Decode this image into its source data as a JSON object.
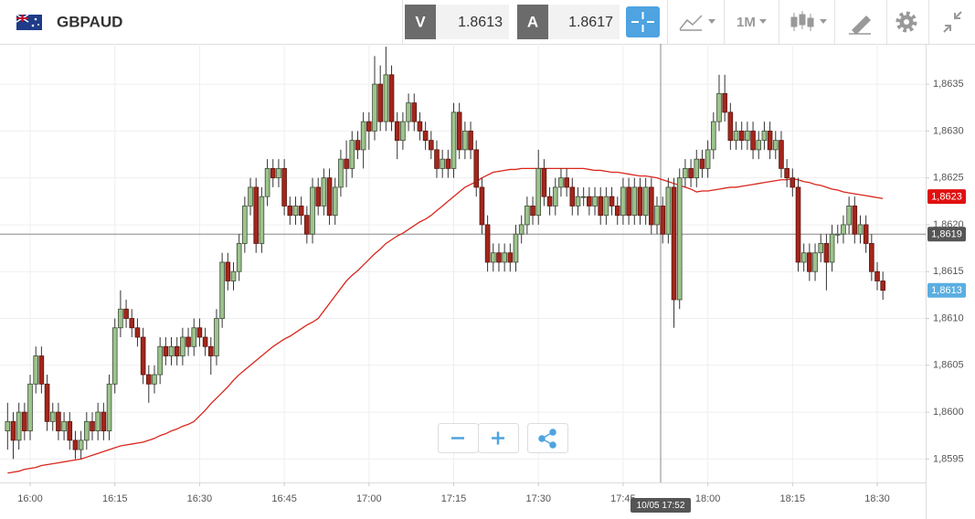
{
  "toolbar": {
    "symbol": "GBPAUD",
    "bid_label": "V",
    "bid": 1.8613,
    "ask_label": "A",
    "ask": 1.8617,
    "timeframe": "1M"
  },
  "chart_data": {
    "type": "candlestick",
    "ylim": [
      1.85925,
      1.86393
    ],
    "yticks": [
      {
        "value": 1.8595,
        "label": "1,8595"
      },
      {
        "value": 1.86,
        "label": "1,8600"
      },
      {
        "value": 1.8605,
        "label": "1,8605"
      },
      {
        "value": 1.861,
        "label": "1,8610"
      },
      {
        "value": 1.8615,
        "label": "1,8615"
      },
      {
        "value": 1.862,
        "label": "1,8620"
      },
      {
        "value": 1.8625,
        "label": "1,8625"
      },
      {
        "value": 1.863,
        "label": "1,8630"
      },
      {
        "value": 1.8635,
        "label": "1,8635"
      }
    ],
    "grid": true,
    "up_color": "#9cc48c",
    "down_color": "#a3261b",
    "categories": [
      null,
      null,
      null,
      null,
      "16:00",
      null,
      null,
      null,
      null,
      null,
      null,
      null,
      null,
      null,
      null,
      null,
      null,
      null,
      null,
      "16:15",
      null,
      null,
      null,
      null,
      null,
      null,
      null,
      null,
      null,
      null,
      null,
      null,
      null,
      null,
      "16:30",
      null,
      null,
      null,
      null,
      null,
      null,
      null,
      null,
      null,
      null,
      null,
      null,
      null,
      null,
      "16:45",
      null,
      null,
      null,
      null,
      null,
      null,
      null,
      null,
      null,
      null,
      null,
      null,
      null,
      null,
      "17:00",
      null,
      null,
      null,
      null,
      null,
      null,
      null,
      null,
      null,
      null,
      null,
      null,
      null,
      null,
      "17:15",
      null,
      null,
      null,
      null,
      null,
      null,
      null,
      null,
      null,
      null,
      null,
      null,
      null,
      null,
      "17:30",
      null,
      null,
      null,
      null,
      null,
      null,
      null,
      null,
      null,
      null,
      null,
      null,
      null,
      null,
      "17:45",
      null,
      null,
      null,
      null,
      null,
      null,
      null,
      null,
      null,
      null,
      null,
      null,
      null,
      null,
      "18:00",
      null,
      null,
      null,
      null,
      null,
      null,
      null,
      null,
      null,
      null,
      null,
      null,
      null,
      null,
      "18:15",
      null,
      null,
      null,
      null,
      null,
      null,
      null,
      null,
      null,
      null,
      null,
      null,
      null,
      null,
      "18:30",
      null
    ],
    "candles": [
      [
        1.8598,
        1.8601,
        1.8596,
        1.8599
      ],
      [
        1.8599,
        1.86,
        1.8595,
        1.8597
      ],
      [
        1.8597,
        1.8601,
        1.8596,
        1.86
      ],
      [
        1.86,
        1.8601,
        1.8597,
        1.8598
      ],
      [
        1.8598,
        1.8604,
        1.8597,
        1.8603
      ],
      [
        1.8603,
        1.8607,
        1.8602,
        1.8606
      ],
      [
        1.8606,
        1.8607,
        1.8602,
        1.8603
      ],
      [
        1.8603,
        1.8604,
        1.8598,
        1.8599
      ],
      [
        1.8599,
        1.8601,
        1.8598,
        1.86
      ],
      [
        1.86,
        1.8601,
        1.8597,
        1.8598
      ],
      [
        1.8598,
        1.86,
        1.8597,
        1.8599
      ],
      [
        1.8599,
        1.86,
        1.8596,
        1.8597
      ],
      [
        1.8597,
        1.8598,
        1.8595,
        1.8596
      ],
      [
        1.8596,
        1.8598,
        1.8595,
        1.8597
      ],
      [
        1.8597,
        1.86,
        1.8596,
        1.8599
      ],
      [
        1.8599,
        1.86,
        1.8597,
        1.8598
      ],
      [
        1.8598,
        1.8601,
        1.8597,
        1.86
      ],
      [
        1.86,
        1.8601,
        1.8597,
        1.8598
      ],
      [
        1.8598,
        1.8604,
        1.8597,
        1.8603
      ],
      [
        1.8603,
        1.861,
        1.8602,
        1.8609
      ],
      [
        1.8609,
        1.8613,
        1.8608,
        1.8611
      ],
      [
        1.8611,
        1.8612,
        1.8609,
        1.861
      ],
      [
        1.861,
        1.8611,
        1.8608,
        1.8609
      ],
      [
        1.8609,
        1.861,
        1.8607,
        1.8608
      ],
      [
        1.8608,
        1.8609,
        1.8603,
        1.8604
      ],
      [
        1.8604,
        1.8605,
        1.8601,
        1.8603
      ],
      [
        1.8603,
        1.8605,
        1.8602,
        1.8604
      ],
      [
        1.8604,
        1.8608,
        1.8603,
        1.8607
      ],
      [
        1.8607,
        1.8608,
        1.8605,
        1.8606
      ],
      [
        1.8606,
        1.8608,
        1.8605,
        1.8607
      ],
      [
        1.8607,
        1.8608,
        1.8605,
        1.8606
      ],
      [
        1.8606,
        1.8609,
        1.8605,
        1.8608
      ],
      [
        1.8608,
        1.8609,
        1.8606,
        1.8607
      ],
      [
        1.8607,
        1.861,
        1.8606,
        1.8609
      ],
      [
        1.8609,
        1.861,
        1.8607,
        1.8608
      ],
      [
        1.8608,
        1.8609,
        1.8606,
        1.8607
      ],
      [
        1.8607,
        1.8608,
        1.8604,
        1.8606
      ],
      [
        1.8606,
        1.8611,
        1.8605,
        1.861
      ],
      [
        1.861,
        1.8617,
        1.8609,
        1.8616
      ],
      [
        1.8616,
        1.8617,
        1.8613,
        1.8614
      ],
      [
        1.8614,
        1.8616,
        1.8613,
        1.8615
      ],
      [
        1.8615,
        1.8619,
        1.8614,
        1.8618
      ],
      [
        1.8618,
        1.8623,
        1.8617,
        1.8622
      ],
      [
        1.8622,
        1.8625,
        1.8621,
        1.8624
      ],
      [
        1.8624,
        1.8625,
        1.8617,
        1.8618
      ],
      [
        1.8618,
        1.8624,
        1.8617,
        1.8623
      ],
      [
        1.8623,
        1.8627,
        1.8622,
        1.8626
      ],
      [
        1.8626,
        1.8627,
        1.8624,
        1.8625
      ],
      [
        1.8625,
        1.8627,
        1.8624,
        1.8626
      ],
      [
        1.8626,
        1.8627,
        1.8621,
        1.8622
      ],
      [
        1.8622,
        1.8623,
        1.862,
        1.8621
      ],
      [
        1.8621,
        1.8623,
        1.862,
        1.8622
      ],
      [
        1.8622,
        1.8623,
        1.862,
        1.8621
      ],
      [
        1.8621,
        1.8622,
        1.8618,
        1.8619
      ],
      [
        1.8619,
        1.8625,
        1.8618,
        1.8624
      ],
      [
        1.8624,
        1.8625,
        1.8621,
        1.8622
      ],
      [
        1.8622,
        1.8626,
        1.8621,
        1.8625
      ],
      [
        1.8625,
        1.8626,
        1.862,
        1.8621
      ],
      [
        1.8621,
        1.8625,
        1.862,
        1.8624
      ],
      [
        1.8624,
        1.8628,
        1.8623,
        1.8627
      ],
      [
        1.8627,
        1.8629,
        1.8624,
        1.8626
      ],
      [
        1.8626,
        1.863,
        1.8625,
        1.8629
      ],
      [
        1.8629,
        1.863,
        1.8627,
        1.8628
      ],
      [
        1.8628,
        1.8632,
        1.8626,
        1.8631
      ],
      [
        1.8631,
        1.8632,
        1.8628,
        1.863
      ],
      [
        1.863,
        1.8638,
        1.8629,
        1.8635
      ],
      [
        1.8635,
        1.8637,
        1.863,
        1.8631
      ],
      [
        1.8631,
        1.8639,
        1.863,
        1.8636
      ],
      [
        1.8636,
        1.8637,
        1.863,
        1.8631
      ],
      [
        1.8631,
        1.8632,
        1.8627,
        1.8629
      ],
      [
        1.8629,
        1.8632,
        1.8628,
        1.8631
      ],
      [
        1.8631,
        1.8634,
        1.863,
        1.8633
      ],
      [
        1.8633,
        1.8634,
        1.863,
        1.8631
      ],
      [
        1.8631,
        1.8632,
        1.8629,
        1.863
      ],
      [
        1.863,
        1.8631,
        1.8628,
        1.8629
      ],
      [
        1.8629,
        1.863,
        1.8627,
        1.8628
      ],
      [
        1.8628,
        1.8629,
        1.8625,
        1.8626
      ],
      [
        1.8626,
        1.8628,
        1.8625,
        1.8627
      ],
      [
        1.8627,
        1.8628,
        1.8625,
        1.8626
      ],
      [
        1.8626,
        1.8633,
        1.8625,
        1.8632
      ],
      [
        1.8632,
        1.8633,
        1.8627,
        1.8628
      ],
      [
        1.8628,
        1.8631,
        1.8627,
        1.863
      ],
      [
        1.863,
        1.8631,
        1.8627,
        1.8628
      ],
      [
        1.8628,
        1.8629,
        1.8623,
        1.8624
      ],
      [
        1.8624,
        1.8625,
        1.8619,
        1.862
      ],
      [
        1.862,
        1.8621,
        1.8615,
        1.8616
      ],
      [
        1.8616,
        1.8618,
        1.8615,
        1.8617
      ],
      [
        1.8617,
        1.8618,
        1.8615,
        1.8616
      ],
      [
        1.8616,
        1.8618,
        1.8615,
        1.8617
      ],
      [
        1.8617,
        1.8618,
        1.8615,
        1.8616
      ],
      [
        1.8616,
        1.862,
        1.8615,
        1.8619
      ],
      [
        1.8619,
        1.8621,
        1.8618,
        1.862
      ],
      [
        1.862,
        1.8623,
        1.8619,
        1.8622
      ],
      [
        1.8622,
        1.8623,
        1.862,
        1.8621
      ],
      [
        1.8621,
        1.8628,
        1.862,
        1.8626
      ],
      [
        1.8626,
        1.8627,
        1.8622,
        1.8623
      ],
      [
        1.8623,
        1.8624,
        1.8621,
        1.8622
      ],
      [
        1.8622,
        1.8625,
        1.8621,
        1.8624
      ],
      [
        1.8624,
        1.8626,
        1.8623,
        1.8625
      ],
      [
        1.8625,
        1.8626,
        1.8623,
        1.8624
      ],
      [
        1.8624,
        1.8625,
        1.8621,
        1.8622
      ],
      [
        1.8622,
        1.8624,
        1.8621,
        1.8623
      ],
      [
        1.8623,
        1.8624,
        1.8622,
        1.8623
      ],
      [
        1.8623,
        1.8624,
        1.8621,
        1.8622
      ],
      [
        1.8622,
        1.8624,
        1.8621,
        1.8623
      ],
      [
        1.8623,
        1.8624,
        1.862,
        1.8621
      ],
      [
        1.8621,
        1.8624,
        1.862,
        1.8623
      ],
      [
        1.8623,
        1.8624,
        1.8621,
        1.8622
      ],
      [
        1.8622,
        1.8623,
        1.862,
        1.8621
      ],
      [
        1.8621,
        1.8625,
        1.862,
        1.8624
      ],
      [
        1.8624,
        1.8625,
        1.862,
        1.8621
      ],
      [
        1.8621,
        1.8625,
        1.862,
        1.8624
      ],
      [
        1.8624,
        1.8625,
        1.862,
        1.8621
      ],
      [
        1.8621,
        1.8625,
        1.862,
        1.8624
      ],
      [
        1.8624,
        1.8625,
        1.8619,
        1.862
      ],
      [
        1.862,
        1.8623,
        1.8619,
        1.8622
      ],
      [
        1.8622,
        1.8623,
        1.8618,
        1.8619
      ],
      [
        1.8619,
        1.8625,
        1.8618,
        1.8624
      ],
      [
        1.8624,
        1.8625,
        1.8609,
        1.8612
      ],
      [
        1.8612,
        1.8626,
        1.8611,
        1.8625
      ],
      [
        1.8625,
        1.8627,
        1.8624,
        1.8626
      ],
      [
        1.8626,
        1.8627,
        1.8624,
        1.8625
      ],
      [
        1.8625,
        1.8628,
        1.8624,
        1.8627
      ],
      [
        1.8627,
        1.8628,
        1.8625,
        1.8626
      ],
      [
        1.8626,
        1.8629,
        1.8625,
        1.8628
      ],
      [
        1.8628,
        1.8632,
        1.8627,
        1.8631
      ],
      [
        1.8631,
        1.8636,
        1.863,
        1.8634
      ],
      [
        1.8634,
        1.8636,
        1.8631,
        1.8632
      ],
      [
        1.8632,
        1.8633,
        1.8628,
        1.8629
      ],
      [
        1.8629,
        1.8631,
        1.8628,
        1.863
      ],
      [
        1.863,
        1.8631,
        1.8628,
        1.8629
      ],
      [
        1.8629,
        1.8631,
        1.8628,
        1.863
      ],
      [
        1.863,
        1.8631,
        1.8627,
        1.8628
      ],
      [
        1.8628,
        1.863,
        1.8627,
        1.8629
      ],
      [
        1.8629,
        1.8631,
        1.8628,
        1.863
      ],
      [
        1.863,
        1.8631,
        1.8627,
        1.8628
      ],
      [
        1.8628,
        1.863,
        1.8627,
        1.8629
      ],
      [
        1.8629,
        1.863,
        1.8625,
        1.8626
      ],
      [
        1.8626,
        1.8627,
        1.8624,
        1.8625
      ],
      [
        1.8625,
        1.8626,
        1.8623,
        1.8624
      ],
      [
        1.8624,
        1.8625,
        1.8615,
        1.8616
      ],
      [
        1.8616,
        1.8618,
        1.8615,
        1.8617
      ],
      [
        1.8617,
        1.8618,
        1.8614,
        1.8615
      ],
      [
        1.8615,
        1.8618,
        1.8614,
        1.8617
      ],
      [
        1.8617,
        1.8619,
        1.8616,
        1.8618
      ],
      [
        1.8618,
        1.8619,
        1.8613,
        1.8616
      ],
      [
        1.8616,
        1.862,
        1.8615,
        1.8619
      ],
      [
        1.8619,
        1.862,
        1.8618,
        1.8619
      ],
      [
        1.8619,
        1.8621,
        1.8618,
        1.862
      ],
      [
        1.862,
        1.8623,
        1.8619,
        1.8622
      ],
      [
        1.8622,
        1.8623,
        1.8618,
        1.8619
      ],
      [
        1.8619,
        1.8621,
        1.8618,
        1.862
      ],
      [
        1.862,
        1.8621,
        1.8617,
        1.8618
      ],
      [
        1.8618,
        1.8619,
        1.8614,
        1.8615
      ],
      [
        1.8615,
        1.8616,
        1.8613,
        1.8614
      ],
      [
        1.8614,
        1.8615,
        1.8612,
        1.8613
      ]
    ],
    "ma": {
      "color": "#d9261c",
      "values": [
        1.85935,
        1.85936,
        1.85937,
        1.85939,
        1.8594,
        1.85941,
        1.85943,
        1.85944,
        1.85945,
        1.85946,
        1.85947,
        1.85948,
        1.85949,
        1.8595,
        1.85952,
        1.85954,
        1.85956,
        1.85958,
        1.8596,
        1.85962,
        1.85964,
        1.85965,
        1.85966,
        1.85967,
        1.85968,
        1.8597,
        1.85972,
        1.85975,
        1.85977,
        1.8598,
        1.85982,
        1.85985,
        1.85987,
        1.8599,
        1.85996,
        1.86002,
        1.86009,
        1.86015,
        1.86021,
        1.86027,
        1.86034,
        1.8604,
        1.86045,
        1.8605,
        1.86055,
        1.8606,
        1.86065,
        1.8607,
        1.86074,
        1.86078,
        1.86081,
        1.86085,
        1.86089,
        1.86093,
        1.86096,
        1.861,
        1.86108,
        1.86116,
        1.86124,
        1.86132,
        1.8614,
        1.86146,
        1.86151,
        1.86157,
        1.86163,
        1.86169,
        1.86174,
        1.8618,
        1.86184,
        1.86188,
        1.86191,
        1.86195,
        1.86199,
        1.86203,
        1.86206,
        1.8621,
        1.86215,
        1.8622,
        1.86225,
        1.8623,
        1.86235,
        1.8624,
        1.86243,
        1.86246,
        1.8625,
        1.86253,
        1.86256,
        1.86257,
        1.86258,
        1.86259,
        1.86259,
        1.8626,
        1.8626,
        1.8626,
        1.8626,
        1.8626,
        1.8626,
        1.8626,
        1.8626,
        1.8626,
        1.8626,
        1.8626,
        1.8626,
        1.86259,
        1.86258,
        1.86258,
        1.86257,
        1.86256,
        1.86256,
        1.86255,
        1.86254,
        1.86253,
        1.86252,
        1.86252,
        1.86251,
        1.8625,
        1.86248,
        1.86246,
        1.86244,
        1.86242,
        1.8624,
        1.86238,
        1.86235,
        1.86236,
        1.86236,
        1.86237,
        1.86238,
        1.86239,
        1.8624,
        1.8624,
        1.86241,
        1.86242,
        1.86243,
        1.86244,
        1.86245,
        1.86246,
        1.86247,
        1.86248,
        1.86248,
        1.86249,
        1.86248,
        1.86246,
        1.86245,
        1.86243,
        1.86242,
        1.8624,
        1.86238,
        1.86237,
        1.86235,
        1.86234,
        1.86233,
        1.86232,
        1.86231,
        1.8623,
        1.86229,
        1.86228
      ]
    },
    "ma_label": {
      "value": 1.8623,
      "label": "1,8623"
    },
    "last_label": {
      "value": 1.8613,
      "label": "1,8613"
    },
    "crosshair": {
      "x_label": "10/05 17:52",
      "y": {
        "value": 1.8619,
        "label": "1,8619"
      }
    }
  }
}
